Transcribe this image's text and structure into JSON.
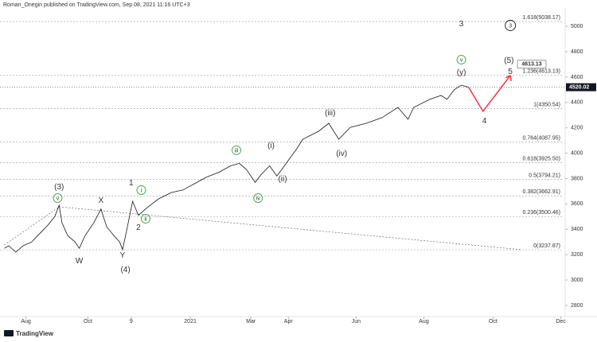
{
  "header": "Roman_Onegin published on TradingView.com, Sep 08, 2021 11:16 UTC+3",
  "footer": "TradingView",
  "chart_data": {
    "type": "line",
    "xlim": [
      -18,
      374
    ],
    "ylim": [
      2712,
      5145
    ],
    "xticks": [
      {
        "value": 0,
        "label": "Aug"
      },
      {
        "value": 43,
        "label": "Oct"
      },
      {
        "value": 73,
        "label": "9"
      },
      {
        "value": 114,
        "label": "2021"
      },
      {
        "value": 156,
        "label": "Mar"
      },
      {
        "value": 182,
        "label": "Apr"
      },
      {
        "value": 229,
        "label": "Jun"
      },
      {
        "value": 276,
        "label": "Aug"
      },
      {
        "value": 324,
        "label": "Oct"
      },
      {
        "value": 371,
        "label": "Dec"
      }
    ],
    "yticks": [
      2800,
      3000,
      3200,
      3400,
      3600,
      3800,
      4000,
      4200,
      4400,
      4600,
      4800,
      5000
    ],
    "x": [
      -15,
      -12,
      -7,
      -2,
      4,
      9,
      15,
      20,
      23,
      25,
      29,
      34,
      37,
      41,
      47,
      52,
      56,
      61,
      65,
      67,
      70,
      74,
      78,
      84,
      92,
      101,
      109,
      117,
      125,
      134,
      142,
      148,
      153,
      159,
      163,
      169,
      174,
      178,
      183,
      187,
      192,
      203,
      210,
      217,
      225,
      236,
      247,
      258,
      265,
      269,
      280,
      288,
      292,
      297,
      302,
      307
    ],
    "series": [
      {
        "color": "#131722",
        "values": [
          3250,
          3270,
          3220,
          3270,
          3300,
          3360,
          3430,
          3500,
          3590,
          3450,
          3350,
          3300,
          3250,
          3350,
          3450,
          3560,
          3420,
          3350,
          3300,
          3240,
          3400,
          3620,
          3510,
          3570,
          3640,
          3690,
          3710,
          3760,
          3810,
          3850,
          3900,
          3920,
          3870,
          3770,
          3830,
          3900,
          3820,
          3880,
          3960,
          4020,
          4110,
          4173,
          4236,
          4110,
          4204,
          4236,
          4280,
          4361,
          4267,
          4361,
          4424,
          4455,
          4424,
          4500,
          4537,
          4520
        ]
      }
    ],
    "last_price": 4520.02,
    "target": 4613.13,
    "fib_levels": [
      {
        "value": 5038.17,
        "label": "1.618(5038.17)"
      },
      {
        "value": 4613.13,
        "label": "1.236(4613.13)"
      },
      {
        "value": 4350.54,
        "label": "1(4350.54)"
      },
      {
        "value": 4087.95,
        "label": "0.764(4087.95)"
      },
      {
        "value": 3925.5,
        "label": "0.618(3925.50)"
      },
      {
        "value": 3794.21,
        "label": "0.5(3794.21)"
      },
      {
        "value": 3662.91,
        "label": "0.382(3662.91)"
      },
      {
        "value": 3500.46,
        "label": "0.236(3500.46)"
      },
      {
        "value": 3237.87,
        "label": "0(3237.87)"
      }
    ],
    "trendlines": [
      {
        "x": [
          -15,
          23
        ],
        "values": [
          3276,
          3577
        ]
      },
      {
        "x": [
          23,
          344
        ],
        "values": [
          3577,
          3239
        ]
      }
    ],
    "projection": {
      "color": "#f23645",
      "x": [
        307,
        317,
        336
      ],
      "values": [
        4520,
        4330,
        4613
      ]
    },
    "wave_labels": [
      {
        "text": "(3)",
        "color": "#e53935",
        "x": 23,
        "y": 3734
      },
      {
        "text": "v",
        "color": "#43a047",
        "circle": true,
        "x": 22,
        "y": 3646
      },
      {
        "text": "W",
        "color": "#00acc1",
        "x": 37,
        "y": 3151
      },
      {
        "text": "X",
        "color": "#00acc1",
        "x": 52,
        "y": 3628
      },
      {
        "text": "Y",
        "color": "#00acc1",
        "x": 67,
        "y": 3195
      },
      {
        "text": "(4)",
        "color": "#e53935",
        "x": 69,
        "y": 3082
      },
      {
        "text": "1",
        "color": "#00acc1",
        "x": 73,
        "y": 3766
      },
      {
        "text": "i",
        "color": "#43a047",
        "circle": true,
        "x": 80,
        "y": 3709
      },
      {
        "text": "ii",
        "color": "#43a047",
        "circle": true,
        "x": 83,
        "y": 3483
      },
      {
        "text": "2",
        "color": "#00acc1",
        "x": 78,
        "y": 3414
      },
      {
        "text": "iii",
        "color": "#43a047",
        "circle": true,
        "x": 146,
        "y": 4023
      },
      {
        "text": "iv",
        "color": "#43a047",
        "circle": true,
        "x": 161,
        "y": 3646
      },
      {
        "text": "(i)",
        "color": "#e57373",
        "x": 170,
        "y": 4060
      },
      {
        "text": "(ii)",
        "color": "#e57373",
        "x": 178,
        "y": 3797
      },
      {
        "text": "(iii)",
        "color": "#e57373",
        "x": 211,
        "y": 4317
      },
      {
        "text": "(iv)",
        "color": "#e57373",
        "x": 219,
        "y": 3997
      },
      {
        "text": "3",
        "color": "#00acc1",
        "x": 302,
        "y": 5019
      },
      {
        "text": "v",
        "color": "#43a047",
        "circle": true,
        "x": 302,
        "y": 4737
      },
      {
        "text": "(y)",
        "color": "#e57373",
        "x": 302,
        "y": 4637
      },
      {
        "text": "3",
        "color": "#131722",
        "circle": true,
        "x": 336,
        "y": 5007
      },
      {
        "text": "(5)",
        "color": "#e53935",
        "x": 335,
        "y": 4731
      },
      {
        "text": "5",
        "color": "#00acc1",
        "x": 336,
        "y": 4643
      },
      {
        "text": "4",
        "color": "#00acc1",
        "x": 318,
        "y": 4255
      }
    ]
  }
}
